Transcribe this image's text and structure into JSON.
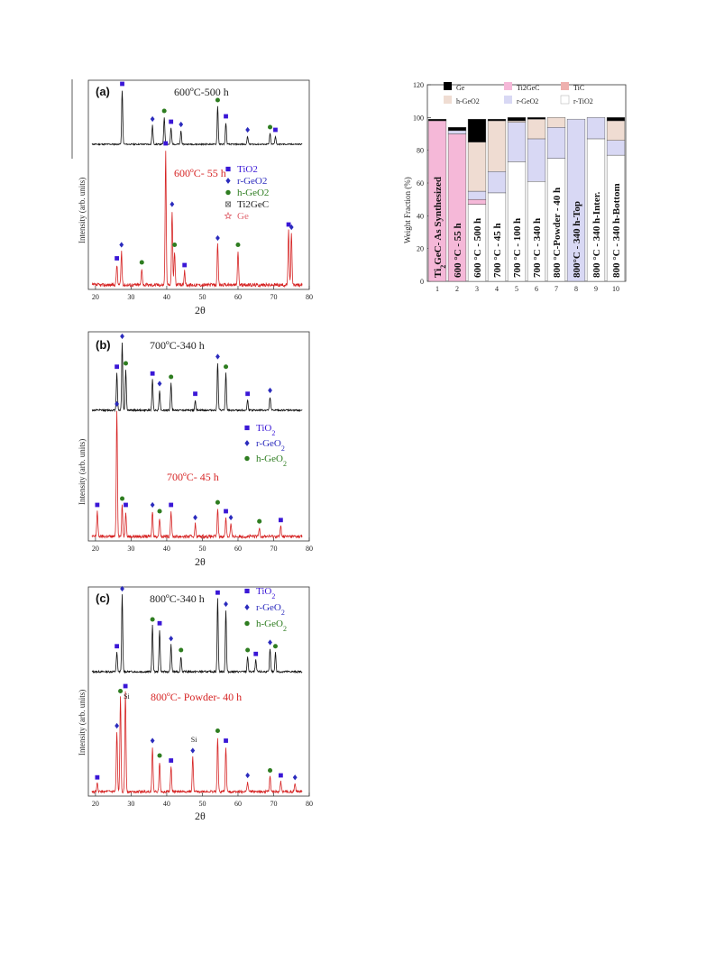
{
  "colors": {
    "black_trace": "#111111",
    "red_trace": "#d62424",
    "tio2": "#3a17d6",
    "rgeo2": "#2b2bbd",
    "hgeo2": "#2e7d20",
    "ti2gec": "#666666",
    "ge": "#e0646e",
    "bar_Ge": "#000000",
    "bar_hGeO2": "#efdcd2",
    "bar_Ti2GeC": "#f5b8d8",
    "bar_TiC": "#eeb0ae",
    "bar_rGeO2": "#d8d8f4",
    "bar_rTiO2": "#ffffff"
  },
  "chart_data": [
    {
      "type": "line",
      "panel": "(a)",
      "xlabel": "2θ",
      "ylabel": "Intensity (arb. units)",
      "xlim": [
        18,
        80
      ],
      "xticks": [
        20,
        30,
        40,
        50,
        60,
        70,
        80
      ],
      "series": [
        {
          "name": "600ºC-500 h",
          "role": "top",
          "peaks": [
            [
              27.5,
              1.0
            ],
            [
              36.0,
              0.35
            ],
            [
              39.3,
              0.5
            ],
            [
              41.2,
              0.3
            ],
            [
              44.0,
              0.25
            ],
            [
              54.3,
              0.7
            ],
            [
              56.6,
              0.4
            ],
            [
              62.7,
              0.15
            ],
            [
              69.0,
              0.2
            ],
            [
              70.5,
              0.15
            ]
          ]
        },
        {
          "name": "600ºC- 55 h",
          "role": "bottom",
          "peaks": [
            [
              26.0,
              0.15
            ],
            [
              27.3,
              0.25
            ],
            [
              33.0,
              0.12
            ],
            [
              39.7,
              1.0
            ],
            [
              41.5,
              0.55
            ],
            [
              42.2,
              0.25
            ],
            [
              45.0,
              0.1
            ],
            [
              54.3,
              0.3
            ],
            [
              60.0,
              0.25
            ],
            [
              74.2,
              0.4
            ],
            [
              75.0,
              0.38
            ]
          ]
        }
      ],
      "legend": [
        {
          "label": "TiO2",
          "marker": "square"
        },
        {
          "label": "r-GeO2",
          "marker": "diamond"
        },
        {
          "label": "h-GeO2",
          "marker": "circle"
        },
        {
          "label": "Ti2GeC",
          "marker": "xbox"
        },
        {
          "label": "Ge",
          "marker": "star"
        }
      ]
    },
    {
      "type": "line",
      "panel": "(b)",
      "xlabel": "2θ",
      "ylabel": "Intensity (arb. units)",
      "xlim": [
        18,
        80
      ],
      "xticks": [
        20,
        30,
        40,
        50,
        60,
        70,
        80
      ],
      "series": [
        {
          "name": "700ºC-340 h",
          "role": "top",
          "peaks": [
            [
              26.0,
              0.55
            ],
            [
              27.5,
              1.0
            ],
            [
              28.5,
              0.6
            ],
            [
              36.0,
              0.45
            ],
            [
              38.0,
              0.3
            ],
            [
              41.2,
              0.4
            ],
            [
              48.0,
              0.15
            ],
            [
              54.3,
              0.7
            ],
            [
              56.6,
              0.55
            ],
            [
              62.7,
              0.15
            ],
            [
              69.0,
              0.2
            ]
          ]
        },
        {
          "name": "700ºC- 45 h",
          "role": "bottom",
          "peaks": [
            [
              20.5,
              0.2
            ],
            [
              26.0,
              1.0
            ],
            [
              27.5,
              0.25
            ],
            [
              28.5,
              0.2
            ],
            [
              36.0,
              0.2
            ],
            [
              38.0,
              0.15
            ],
            [
              41.2,
              0.2
            ],
            [
              48.0,
              0.1
            ],
            [
              54.3,
              0.22
            ],
            [
              56.6,
              0.15
            ],
            [
              58.0,
              0.1
            ],
            [
              66.0,
              0.07
            ],
            [
              72.0,
              0.08
            ]
          ]
        }
      ],
      "legend": [
        {
          "label": "TiO",
          "sub": "2",
          "marker": "square"
        },
        {
          "label": "r-GeO",
          "sub": "2",
          "marker": "diamond"
        },
        {
          "label": "h-GeO",
          "sub": "2",
          "marker": "circle"
        }
      ]
    },
    {
      "type": "line",
      "panel": "(c)",
      "xlabel": "2θ",
      "ylabel": "Intensity (arb. units)",
      "xlim": [
        18,
        80
      ],
      "xticks": [
        20,
        30,
        40,
        50,
        60,
        70,
        80
      ],
      "series": [
        {
          "name": "800ºC-340 h",
          "role": "top",
          "peaks": [
            [
              26.0,
              0.25
            ],
            [
              27.5,
              1.0
            ],
            [
              36.0,
              0.6
            ],
            [
              38.0,
              0.55
            ],
            [
              41.2,
              0.35
            ],
            [
              44.0,
              0.2
            ],
            [
              54.3,
              0.95
            ],
            [
              56.6,
              0.8
            ],
            [
              62.7,
              0.2
            ],
            [
              65.0,
              0.15
            ],
            [
              69.0,
              0.3
            ],
            [
              70.5,
              0.25
            ]
          ]
        },
        {
          "name": "800ºC- Powder- 40 h",
          "role": "bottom",
          "peaks": [
            [
              20.5,
              0.08
            ],
            [
              26.0,
              0.6
            ],
            [
              27.0,
              0.95
            ],
            [
              28.4,
              1.0
            ],
            [
              36.0,
              0.45
            ],
            [
              38.0,
              0.3
            ],
            [
              41.2,
              0.25
            ],
            [
              47.3,
              0.35
            ],
            [
              54.3,
              0.55
            ],
            [
              56.6,
              0.45
            ],
            [
              62.7,
              0.1
            ],
            [
              69.0,
              0.15
            ],
            [
              72.0,
              0.1
            ],
            [
              76.0,
              0.08
            ]
          ]
        }
      ],
      "annotations": [
        {
          "text": "Si",
          "x": 28.4
        },
        {
          "text": "Si",
          "x": 47.3
        }
      ],
      "legend": [
        {
          "label": "TiO",
          "sub": "2",
          "marker": "square"
        },
        {
          "label": "r-GeO",
          "sub": "2",
          "marker": "diamond"
        },
        {
          "label": "h-GeO",
          "sub": "2",
          "marker": "circle"
        }
      ]
    },
    {
      "type": "bar",
      "stacked": true,
      "ylabel": "Weight Fraction (%)",
      "ylim": [
        0,
        120
      ],
      "yticks": [
        0,
        20,
        40,
        60,
        80,
        100,
        120
      ],
      "categories": [
        "1",
        "2",
        "3",
        "4",
        "5",
        "6",
        "7",
        "8",
        "9",
        "10"
      ],
      "bar_labels": [
        {
          "main": "Ti",
          "sub": "2",
          "rest": "GeC- As Synthesized"
        },
        {
          "main": "600 °C - 55 h"
        },
        {
          "main": "600 °C - 500 h"
        },
        {
          "main": "700 °C - 45 h"
        },
        {
          "main": "700 °C - 100 h"
        },
        {
          "main": "700 °C - 340 h"
        },
        {
          "main": "800 °C-Powder - 40 h"
        },
        {
          "main": "800°C - 340 h-Top"
        },
        {
          "main": "800 °C - 340 h-Inter."
        },
        {
          "main": "800 °C - 340 h-Bottom"
        }
      ],
      "series": [
        {
          "name": "r-TiO2",
          "values": [
            0,
            0,
            47,
            54,
            73,
            61,
            75,
            0,
            87,
            77
          ]
        },
        {
          "name": "TiC",
          "values": [
            0,
            0,
            0,
            0,
            0,
            0,
            0,
            0,
            0,
            0
          ]
        },
        {
          "name": "Ti2GeC",
          "values": [
            98,
            90,
            3,
            0,
            0,
            0,
            0,
            0,
            0,
            0
          ]
        },
        {
          "name": "r-GeO2",
          "values": [
            0,
            2,
            5,
            13,
            24,
            26,
            19,
            99,
            13,
            9
          ]
        },
        {
          "name": "h-GeO2",
          "values": [
            0,
            0,
            30,
            31,
            1,
            12,
            6,
            0,
            0,
            12
          ]
        },
        {
          "name": "Ge",
          "values": [
            1,
            2,
            14,
            1,
            2,
            1,
            0,
            0,
            0,
            2
          ]
        }
      ],
      "legend": [
        {
          "label": "Ge",
          "key": "Ge"
        },
        {
          "label": "Ti2GeC",
          "key": "Ti2GeC"
        },
        {
          "label": "TiC",
          "key": "TiC"
        },
        {
          "label": "h-GeO2",
          "key": "hGeO2"
        },
        {
          "label": "r-GeO2",
          "key": "rGeO2"
        },
        {
          "label": "r-TiO2",
          "key": "rTiO2"
        }
      ]
    }
  ],
  "panel_labels": {
    "a": "(a)",
    "b": "(b)",
    "c": "(c)"
  }
}
